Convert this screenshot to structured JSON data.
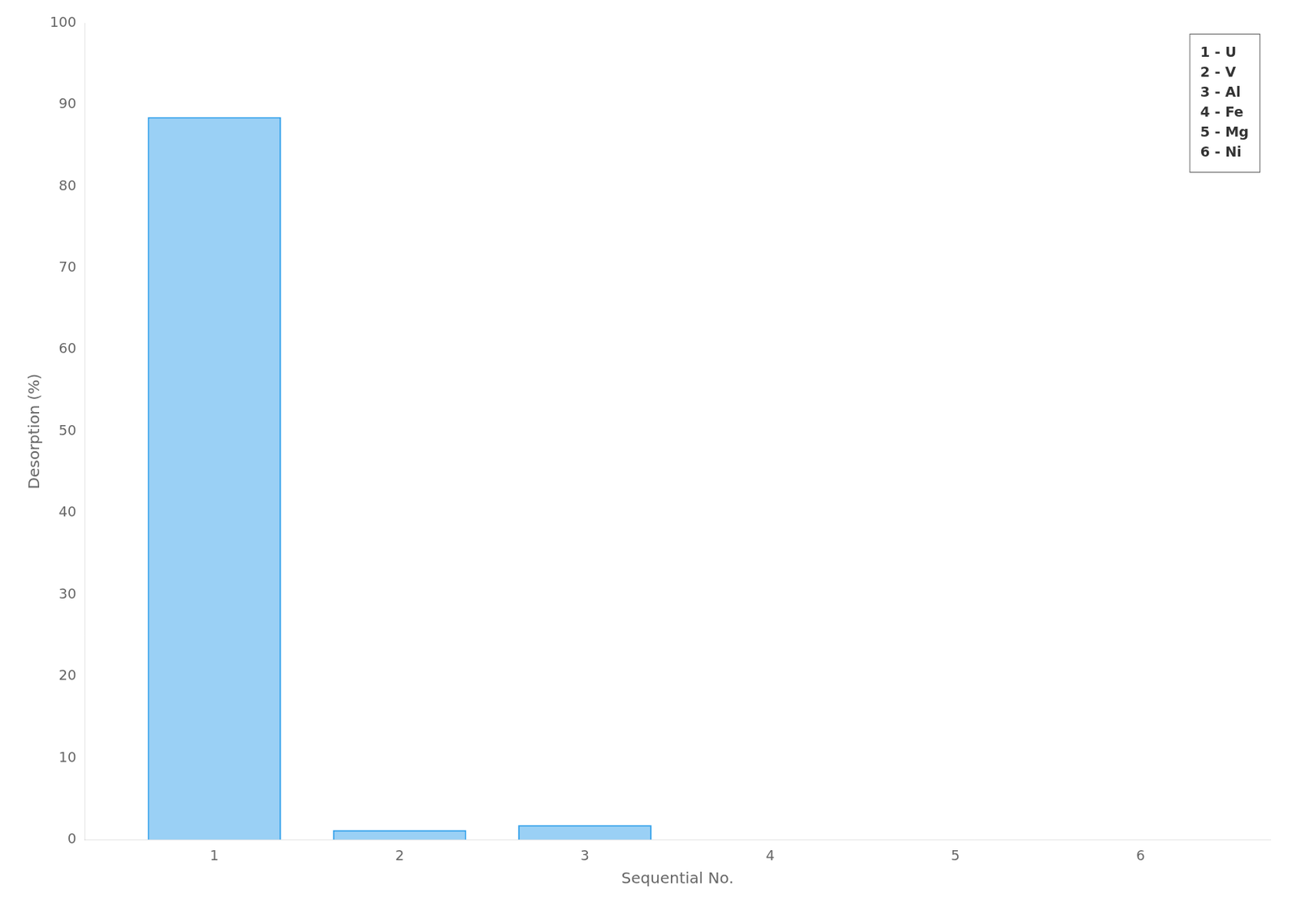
{
  "chart_data": {
    "type": "bar",
    "x": [
      1,
      2,
      3,
      4,
      5,
      6
    ],
    "values": [
      88.5,
      1.2,
      1.8,
      0,
      0,
      0
    ],
    "xlabel": "Sequential No.",
    "ylabel": "Desorption (%)",
    "xlim": [
      0.3,
      6.7
    ],
    "xticks": [
      1,
      2,
      3,
      4,
      5,
      6
    ],
    "ylim": [
      0,
      100
    ],
    "yticks": [
      0,
      10,
      20,
      30,
      40,
      50,
      60,
      70,
      80,
      90,
      100
    ],
    "grid": false,
    "legend": "upper right",
    "legend_labels": [
      "1 - U",
      "2 - V",
      "3 - Al",
      "4 - Fe",
      "5 - Mg",
      "6 - Ni"
    ]
  }
}
